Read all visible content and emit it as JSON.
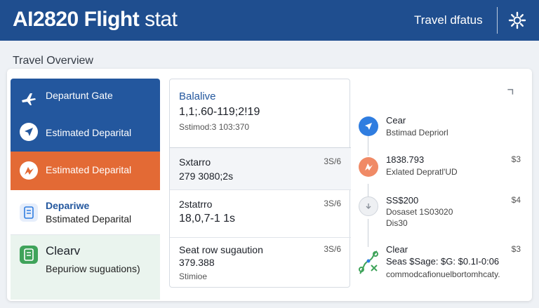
{
  "header": {
    "title_bold": "AI2820 Flight",
    "title_light": "stat",
    "status": "Travel dfatus"
  },
  "overview_label": "Travel Overview",
  "sidebar": {
    "items": [
      {
        "label": "Departunt Gate"
      },
      {
        "label": "Estimated Deparital"
      },
      {
        "label": "Estimated Deparital"
      },
      {
        "label": "Depariwe",
        "sub": "Bstimated Deparital"
      },
      {
        "label": "Clearv",
        "sub": "Bepuriow suguations)"
      }
    ]
  },
  "middle": {
    "head": {
      "title": "Balalive",
      "value": "1,1;.60-119;2!19",
      "sub": "Sstimod:3 103:370"
    },
    "rows": [
      {
        "title": "Sxtarro",
        "value": "279 3080;2s",
        "badge": "3S/6"
      },
      {
        "title": "2statrro",
        "value": "18,0,7-1 1s",
        "badge": "3S/6"
      },
      {
        "title": "Seat row sugaution",
        "value": "379.388",
        "sub": "Stimioe",
        "badge": "3S/6"
      }
    ]
  },
  "right": {
    "rows": [
      {
        "title": "Cear",
        "sub": "Bstimad Depriorl",
        "badge": ""
      },
      {
        "title": "1838.793",
        "sub": "Exlated Depratl'UD",
        "badge": "$3"
      },
      {
        "title": "SS$200",
        "sub": "Dosaset 1S03020",
        "sub2": "Dis30",
        "badge": "$4"
      },
      {
        "title": "Clear",
        "sub": "Seas $Sage: $G: $0.1I-0:06",
        "sub2": "commodcafionuelbortomhcaty.",
        "badge": "$3"
      }
    ]
  },
  "colors": {
    "header_bg": "#1f4e8f",
    "sidebar_active": "#23579e",
    "sidebar_alert": "#e36a35",
    "sidebar_clear": "#eaf4ee",
    "icon_blue": "#2f7de0",
    "icon_orange": "#f08a66",
    "icon_green": "#3fa35a"
  }
}
